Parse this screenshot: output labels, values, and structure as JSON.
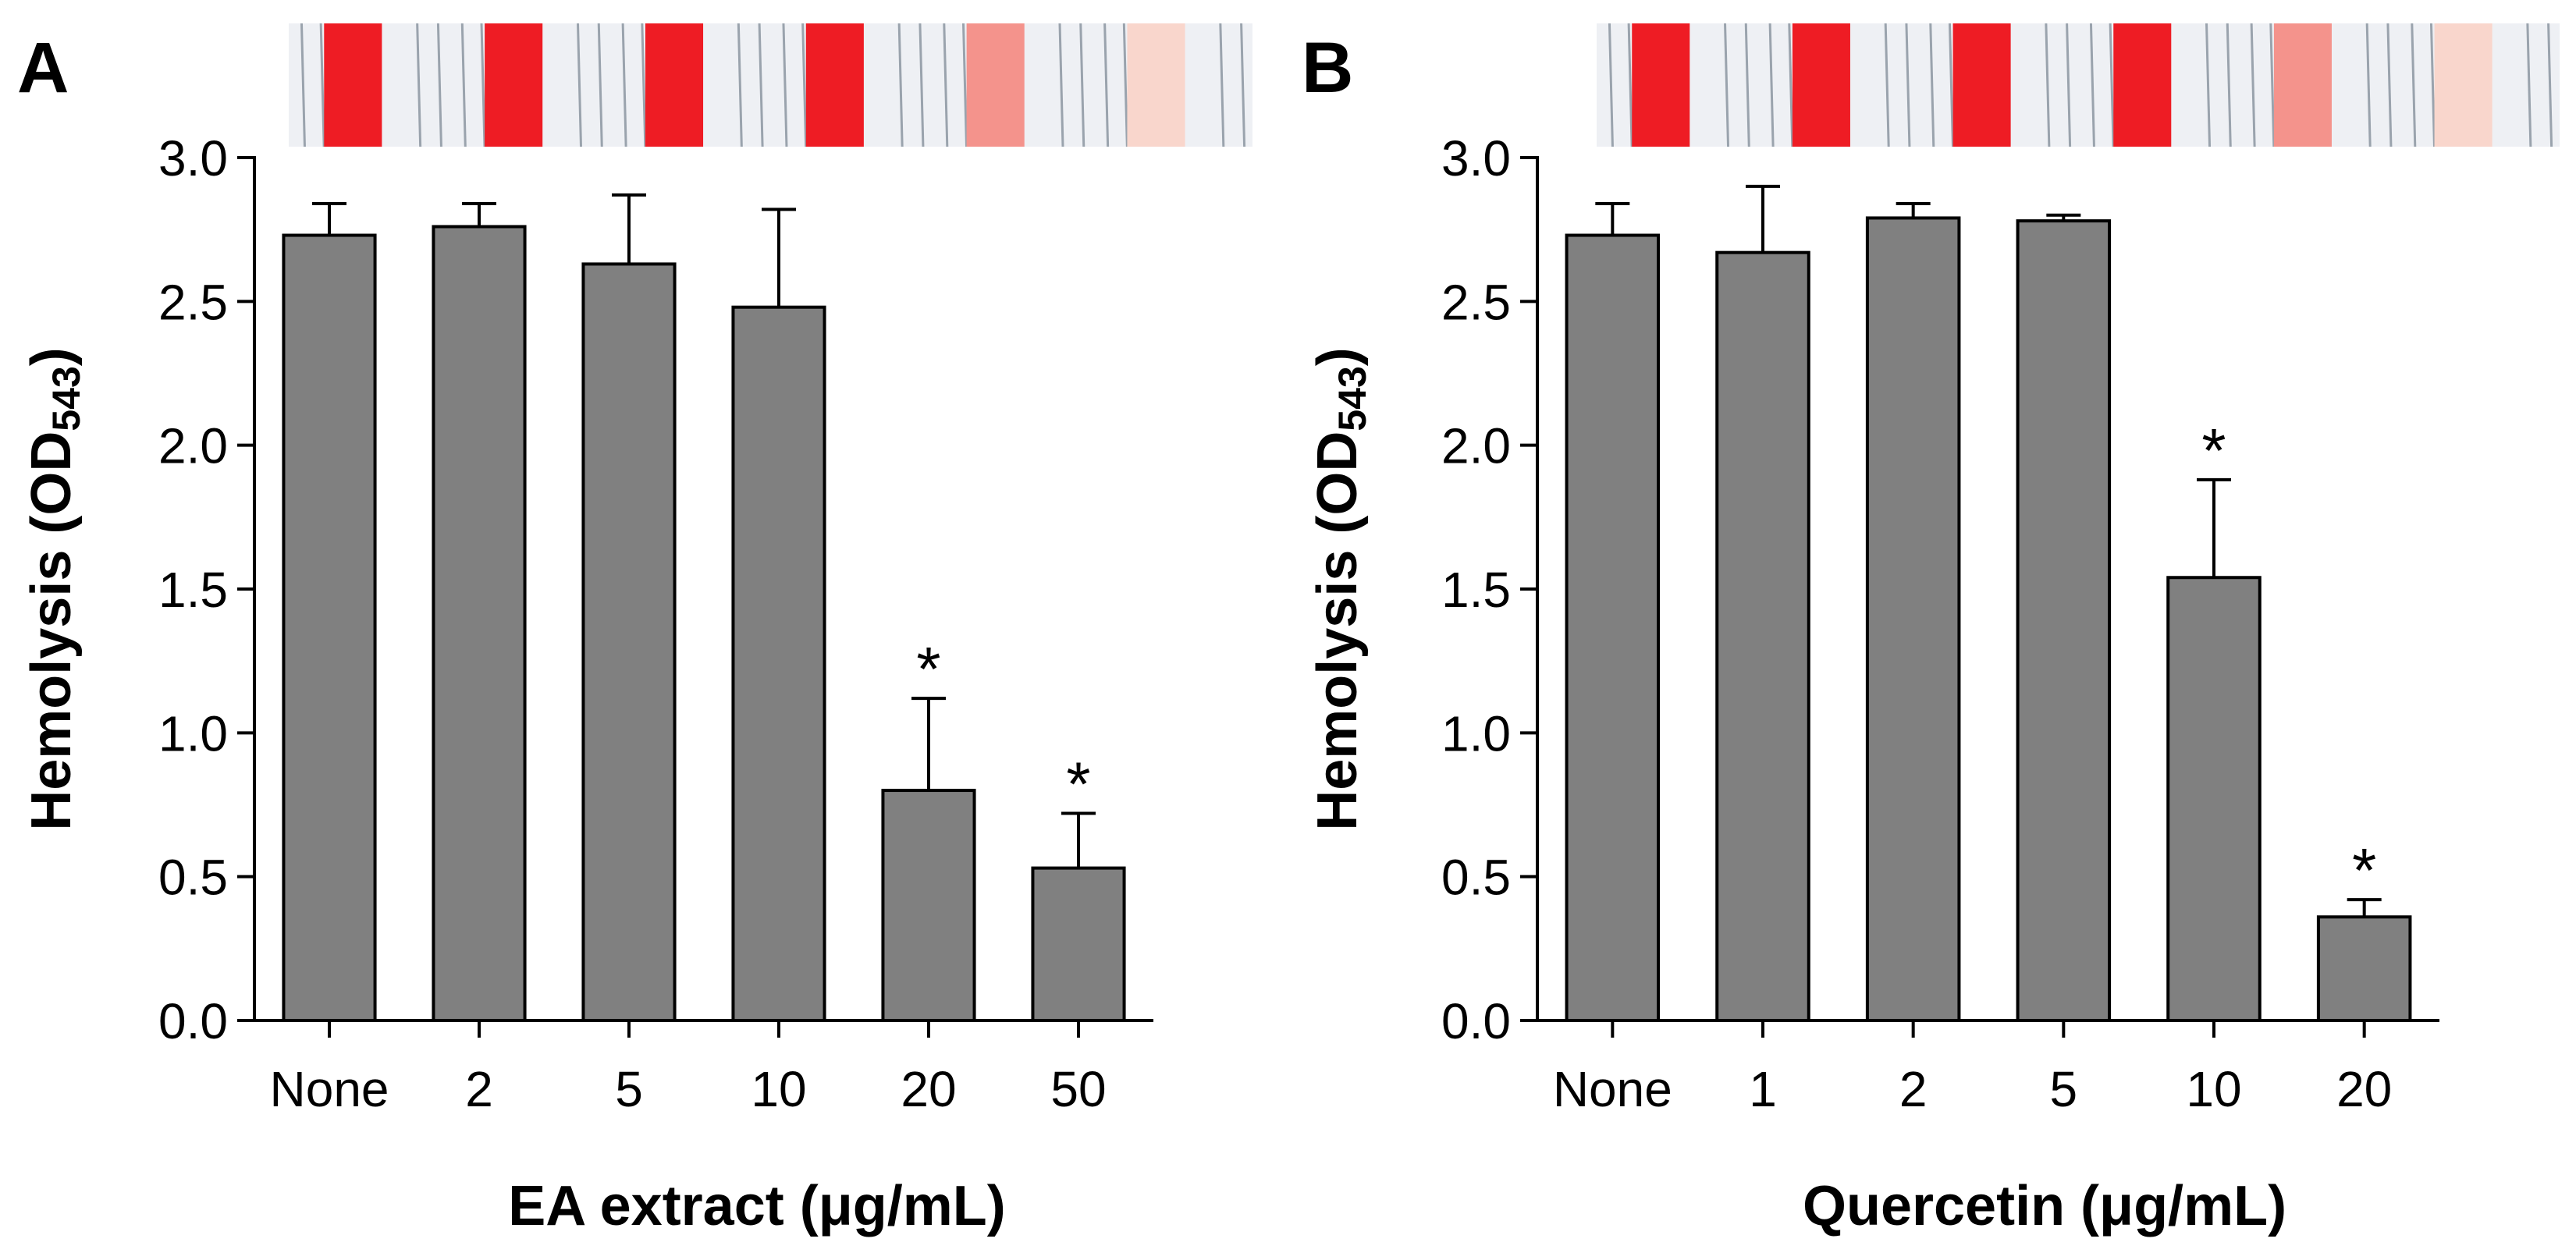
{
  "chart_data": [
    {
      "type": "bar",
      "panel_label": "A",
      "title": "",
      "xlabel": "EA extract (μg/mL)",
      "ylabel": "Hemolysis (OD543)",
      "ylabel_main": "Hemolysis (OD",
      "ylabel_sub": "543",
      "ylabel_close": ")",
      "ylim": [
        0,
        3.0
      ],
      "yticks": [
        "0.0",
        "0.5",
        "1.0",
        "1.5",
        "2.0",
        "2.5",
        "3.0"
      ],
      "categories": [
        "None",
        "2",
        "5",
        "10",
        "20",
        "50"
      ],
      "values": [
        2.73,
        2.76,
        2.63,
        2.48,
        0.8,
        0.53
      ],
      "errors": [
        0.11,
        0.08,
        0.24,
        0.34,
        0.32,
        0.19
      ],
      "significance": [
        "",
        "",
        "",
        "",
        "*",
        "*"
      ],
      "bar_color": "#808080",
      "grid": false,
      "legend": "none",
      "tube_photo_colors": [
        "#ee1c24",
        "#ee1c24",
        "#ee1c24",
        "#ee1c24",
        "#f4938c",
        "#f9d6cc"
      ]
    },
    {
      "type": "bar",
      "panel_label": "B",
      "title": "",
      "xlabel": "Quercetin (μg/mL)",
      "ylabel": "Hemolysis (OD543)",
      "ylabel_main": "Hemolysis (OD",
      "ylabel_sub": "543",
      "ylabel_close": ")",
      "ylim": [
        0,
        3.0
      ],
      "yticks": [
        "0.0",
        "0.5",
        "1.0",
        "1.5",
        "2.0",
        "2.5",
        "3.0"
      ],
      "categories": [
        "None",
        "1",
        "2",
        "5",
        "10",
        "20"
      ],
      "values": [
        2.73,
        2.67,
        2.79,
        2.78,
        1.54,
        0.36
      ],
      "errors": [
        0.11,
        0.23,
        0.05,
        0.02,
        0.34,
        0.06
      ],
      "significance": [
        "",
        "",
        "",
        "",
        "*",
        "*"
      ],
      "bar_color": "#808080",
      "grid": false,
      "legend": "none",
      "tube_photo_colors": [
        "#ee1c24",
        "#ee1c24",
        "#ee1c24",
        "#ee1c24",
        "#f4938c",
        "#f9d6cc"
      ]
    }
  ]
}
